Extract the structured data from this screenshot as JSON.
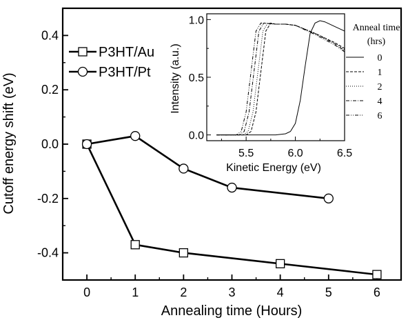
{
  "chart_data": [
    {
      "type": "line",
      "xlabel": "Annealing time (Hours)",
      "ylabel": "Cutoff energy shift (eV)",
      "xlim": [
        -0.5,
        6.5
      ],
      "ylim": [
        -0.5,
        0.5
      ],
      "x_ticks": [
        "0",
        "1",
        "2",
        "3",
        "4",
        "5",
        "6"
      ],
      "y_ticks": [
        "0.4",
        "0.2",
        "0.0",
        "-0.2",
        "-0.4"
      ],
      "legend": "top-left",
      "series": [
        {
          "name": "P3HT/Au",
          "marker": "square",
          "x": [
            0,
            1,
            2,
            4,
            6
          ],
          "y": [
            0.0,
            -0.37,
            -0.4,
            -0.44,
            -0.48
          ]
        },
        {
          "name": "P3HT/Pt",
          "marker": "circle",
          "x": [
            0,
            1,
            2,
            3,
            5
          ],
          "y": [
            0.0,
            0.03,
            -0.09,
            -0.16,
            -0.2
          ]
        }
      ]
    },
    {
      "type": "line",
      "xlabel": "Kinetic Energy (eV)",
      "ylabel": "Intensity (a.u.)",
      "xlim": [
        5.1,
        6.5
      ],
      "ylim": [
        -0.05,
        1.05
      ],
      "x_ticks": [
        "5.5",
        "6.0",
        "6.5"
      ],
      "y_ticks": [
        "1.0",
        "0.5",
        "0.0"
      ],
      "legend_title": "Anneal time (hrs)",
      "legend": "right",
      "series": [
        {
          "name": "0",
          "dash": "solid",
          "x": [
            5.2,
            5.7,
            5.8,
            5.9,
            5.95,
            6.0,
            6.05,
            6.1,
            6.15,
            6.2,
            6.25,
            6.3,
            6.4,
            6.5
          ],
          "y": [
            0.0,
            0.0,
            0.0,
            0.01,
            0.03,
            0.1,
            0.3,
            0.6,
            0.88,
            0.97,
            0.99,
            0.98,
            0.94,
            0.9
          ]
        },
        {
          "name": "1",
          "dash": "dashed",
          "x": [
            5.2,
            5.5,
            5.55,
            5.6,
            5.65,
            5.7,
            5.75,
            5.8,
            5.9,
            6.0,
            6.2,
            6.4,
            6.5
          ],
          "y": [
            0.0,
            0.0,
            0.03,
            0.2,
            0.55,
            0.9,
            0.97,
            0.96,
            0.96,
            0.95,
            0.88,
            0.8,
            0.75
          ]
        },
        {
          "name": "2",
          "dash": "dotted",
          "x": [
            5.2,
            5.47,
            5.52,
            5.57,
            5.62,
            5.67,
            5.72,
            5.8,
            5.9,
            6.0,
            6.2,
            6.4,
            6.5
          ],
          "y": [
            0.0,
            0.0,
            0.03,
            0.2,
            0.55,
            0.9,
            0.97,
            0.96,
            0.96,
            0.95,
            0.88,
            0.8,
            0.74
          ]
        },
        {
          "name": "4",
          "dash": "dashdot",
          "x": [
            5.2,
            5.43,
            5.48,
            5.53,
            5.58,
            5.63,
            5.68,
            5.8,
            5.9,
            6.0,
            6.2,
            6.4,
            6.5
          ],
          "y": [
            0.0,
            0.0,
            0.03,
            0.2,
            0.55,
            0.9,
            0.97,
            0.96,
            0.96,
            0.95,
            0.88,
            0.79,
            0.73
          ]
        },
        {
          "name": "6",
          "dash": "dashdotdot",
          "x": [
            5.2,
            5.4,
            5.45,
            5.5,
            5.55,
            5.6,
            5.65,
            5.8,
            5.9,
            6.0,
            6.2,
            6.4,
            6.5
          ],
          "y": [
            0.0,
            0.0,
            0.03,
            0.2,
            0.55,
            0.9,
            0.97,
            0.96,
            0.96,
            0.95,
            0.87,
            0.78,
            0.72
          ]
        }
      ]
    }
  ]
}
